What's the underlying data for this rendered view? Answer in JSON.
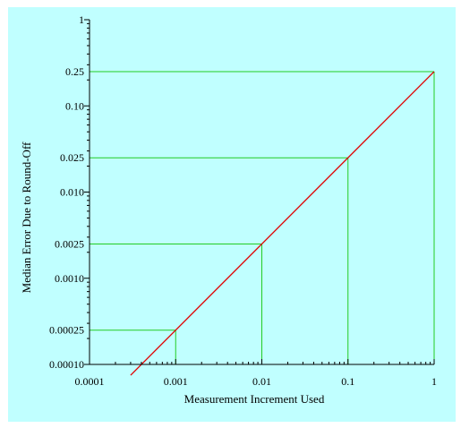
{
  "chart_data": {
    "type": "line",
    "title": "",
    "xlabel": "Measurement Increment Used",
    "ylabel": "Median Error Due to Round-Off",
    "x_scale": "log",
    "y_scale": "log",
    "xlim": [
      0.0001,
      1
    ],
    "ylim": [
      0.0001,
      1
    ],
    "x_ticks": [
      {
        "value": 0.0001,
        "label": "0.0001"
      },
      {
        "value": 0.001,
        "label": "0.001"
      },
      {
        "value": 0.01,
        "label": "0.01"
      },
      {
        "value": 0.1,
        "label": "0.1"
      },
      {
        "value": 1,
        "label": "1"
      }
    ],
    "y_ticks": [
      {
        "value": 0.0001,
        "label": "0.00010"
      },
      {
        "value": 0.00025,
        "label": "0.00025"
      },
      {
        "value": 0.001,
        "label": "0.0010"
      },
      {
        "value": 0.0025,
        "label": "0.0025"
      },
      {
        "value": 0.01,
        "label": "0.010"
      },
      {
        "value": 0.025,
        "label": "0.025"
      },
      {
        "value": 0.1,
        "label": "0.10"
      },
      {
        "value": 0.25,
        "label": "0.25"
      },
      {
        "value": 1,
        "label": "1"
      }
    ],
    "series": [
      {
        "color": "#e00000",
        "x": [
          0.0003,
          1
        ],
        "y": [
          7.5e-05,
          0.25
        ]
      }
    ],
    "reference_points": [
      {
        "x": 0.001,
        "y": 0.00025
      },
      {
        "x": 0.01,
        "y": 0.0025
      },
      {
        "x": 0.1,
        "y": 0.025
      },
      {
        "x": 1,
        "y": 0.25
      }
    ],
    "reference_line_color": "#22cc22",
    "background_color": "#c0ffff",
    "grid": false,
    "legend": "none"
  }
}
